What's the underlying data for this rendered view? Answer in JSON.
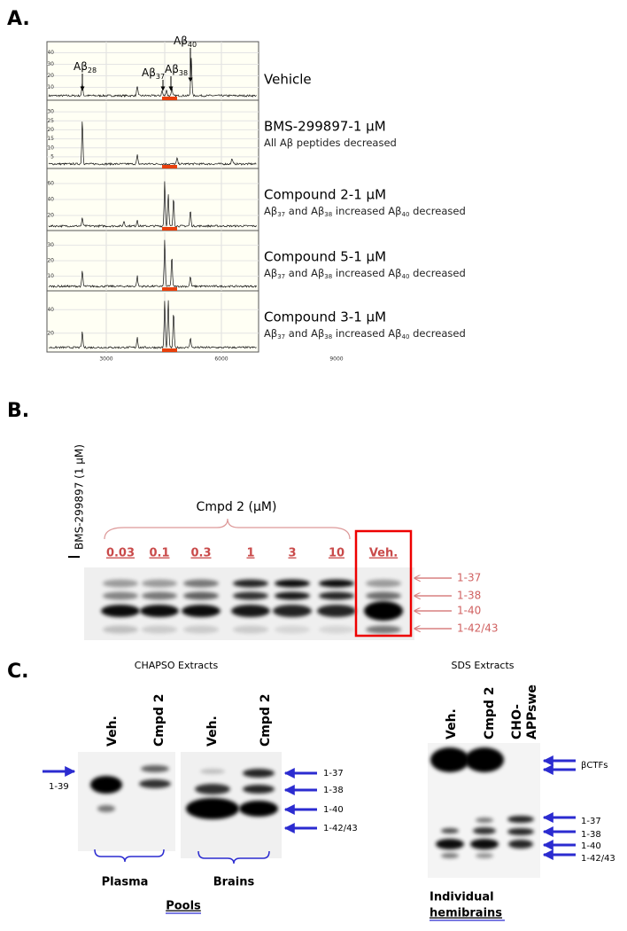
{
  "panel_a": {
    "label": "A.",
    "peak_labels": [
      {
        "base": "Aβ",
        "sub": "28"
      },
      {
        "base": "Aβ",
        "sub": "37"
      },
      {
        "base": "Aβ",
        "sub": "38"
      },
      {
        "base": "Aβ",
        "sub": "40"
      }
    ],
    "rows": [
      {
        "title": "Vehicle",
        "yticks": [
          "40",
          "30",
          "20",
          "10"
        ]
      },
      {
        "title": "BMS-299897-1 μM",
        "subtitle": [
          "All Aβ peptides decreased"
        ],
        "yticks": [
          "30",
          "25",
          "20",
          "15",
          "10",
          "5"
        ]
      },
      {
        "title": "Compound 2-1 μM",
        "subtitle": [
          "Aβ",
          "37",
          " and Aβ",
          "38",
          " increased Aβ",
          "40",
          " decreased"
        ],
        "yticks": [
          "60",
          "40",
          "20"
        ]
      },
      {
        "title": "Compound 5-1 μM",
        "subtitle": [
          "Aβ",
          "37",
          " and Aβ",
          "38",
          " increased Aβ",
          "40",
          " decreased"
        ],
        "yticks": [
          "30",
          "20",
          "10"
        ]
      },
      {
        "title": "Compound 3-1 μM",
        "subtitle": [
          "Aβ",
          "37",
          " and Aβ",
          "38",
          " increased Aβ",
          "40",
          " decreased"
        ],
        "yticks": [
          "40",
          "20"
        ]
      }
    ],
    "xticks": [
      "3000",
      "6000",
      "9000"
    ]
  },
  "panel_b": {
    "label": "B.",
    "control": "BMS-299897 (1 μM)",
    "group": "Cmpd 2 (μM)",
    "lanes": [
      "0.03",
      "0.1",
      "0.3",
      "1",
      "3",
      "10",
      "Veh."
    ],
    "bands": [
      "1-37",
      "1-38",
      "1-40",
      "1-42/43"
    ]
  },
  "panel_c": {
    "label": "C.",
    "chapso": {
      "title": "CHAPSO Extracts",
      "lanes": [
        "Veh.",
        "Cmpd 2",
        "Veh.",
        "Cmpd 2"
      ],
      "left_band": "1-39",
      "bands": [
        "1-37",
        "1-38",
        "1-40",
        "1-42/43"
      ],
      "groups": [
        "Plasma",
        "Brains"
      ],
      "footer": "Pools"
    },
    "sds": {
      "title": "SDS Extracts",
      "lanes": [
        "Veh.",
        "Cmpd 2",
        "CHO-",
        "APPswe"
      ],
      "bands": [
        "βCTFs",
        "1-37",
        "1-38",
        "1-40",
        "1-42/43"
      ],
      "footer": [
        "Individual",
        "hemibrains"
      ]
    }
  }
}
